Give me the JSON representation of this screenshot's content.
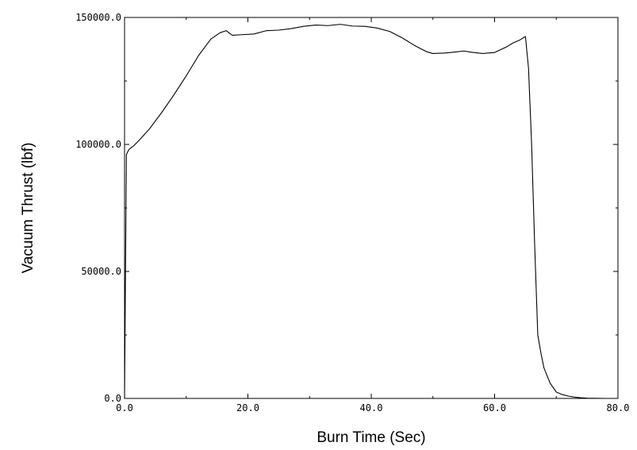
{
  "chart_data": {
    "type": "line",
    "title": "",
    "xlabel": "Burn Time (Sec)",
    "ylabel": "Vacuum Thrust (lbf)",
    "xlim": [
      0,
      80
    ],
    "ylim": [
      0,
      150000
    ],
    "x_ticks": [
      {
        "value": 0,
        "label": "0.0"
      },
      {
        "value": 20,
        "label": "20.0"
      },
      {
        "value": 40,
        "label": "40.0"
      },
      {
        "value": 60,
        "label": "60.0"
      },
      {
        "value": 80,
        "label": "80.0"
      }
    ],
    "y_ticks": [
      {
        "value": 0,
        "label": "0.0"
      },
      {
        "value": 50000,
        "label": "50000.0"
      },
      {
        "value": 100000,
        "label": "100000.0"
      },
      {
        "value": 150000,
        "label": "150000.0"
      }
    ],
    "grid": false,
    "legend": "none",
    "line_color": "#000000",
    "series": [
      {
        "x": [
          0,
          0.3,
          0.7,
          1.5,
          2.5,
          4,
          6,
          8,
          10,
          12,
          14,
          15.5,
          16.5,
          17,
          17.5,
          19,
          21,
          23,
          25,
          27,
          29,
          31,
          33,
          35,
          37,
          39,
          41,
          43,
          45,
          47,
          49,
          50,
          52,
          54,
          55,
          56,
          58,
          60,
          62,
          63,
          64,
          65,
          65.5,
          66,
          66.5,
          67,
          67.5,
          68,
          69,
          70,
          71,
          72,
          73,
          74,
          75,
          76,
          77,
          78
        ],
        "y": [
          0,
          96000,
          98000,
          99500,
          102000,
          106000,
          112500,
          119500,
          127000,
          135000,
          141500,
          144000,
          144800,
          143800,
          143000,
          143200,
          143500,
          144800,
          145000,
          145600,
          146500,
          147000,
          146800,
          147300,
          146600,
          146500,
          145800,
          144500,
          142000,
          139000,
          136500,
          135800,
          136000,
          136500,
          136800,
          136400,
          135800,
          136200,
          138500,
          140000,
          141000,
          142500,
          130000,
          100000,
          60000,
          25000,
          18000,
          12000,
          6000,
          2500,
          1500,
          900,
          500,
          250,
          100,
          50,
          20,
          0
        ]
      }
    ]
  }
}
